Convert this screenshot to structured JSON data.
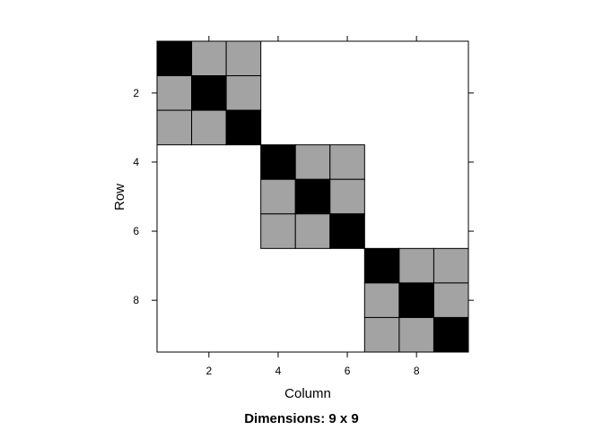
{
  "chart_data": {
    "type": "heatmap",
    "title": "",
    "xlabel": "Column",
    "ylabel": "Row",
    "sub": "Dimensions: 9 x 9",
    "nrow": 9,
    "ncol": 9,
    "x_ticks": [
      2,
      4,
      6,
      8
    ],
    "y_ticks": [
      2,
      4,
      6,
      8
    ],
    "y_reversed": true,
    "colors": {
      "diagonal": "#000000",
      "block": "#a3a3a3",
      "empty": "#ffffff",
      "border": "#000000"
    },
    "cells": [
      {
        "row": 1,
        "col": 1,
        "value": "diagonal"
      },
      {
        "row": 1,
        "col": 2,
        "value": "block"
      },
      {
        "row": 1,
        "col": 3,
        "value": "block"
      },
      {
        "row": 2,
        "col": 1,
        "value": "block"
      },
      {
        "row": 2,
        "col": 2,
        "value": "diagonal"
      },
      {
        "row": 2,
        "col": 3,
        "value": "block"
      },
      {
        "row": 3,
        "col": 1,
        "value": "block"
      },
      {
        "row": 3,
        "col": 2,
        "value": "block"
      },
      {
        "row": 3,
        "col": 3,
        "value": "diagonal"
      },
      {
        "row": 4,
        "col": 4,
        "value": "diagonal"
      },
      {
        "row": 4,
        "col": 5,
        "value": "block"
      },
      {
        "row": 4,
        "col": 6,
        "value": "block"
      },
      {
        "row": 5,
        "col": 4,
        "value": "block"
      },
      {
        "row": 5,
        "col": 5,
        "value": "diagonal"
      },
      {
        "row": 5,
        "col": 6,
        "value": "block"
      },
      {
        "row": 6,
        "col": 4,
        "value": "block"
      },
      {
        "row": 6,
        "col": 5,
        "value": "block"
      },
      {
        "row": 6,
        "col": 6,
        "value": "diagonal"
      },
      {
        "row": 7,
        "col": 7,
        "value": "diagonal"
      },
      {
        "row": 7,
        "col": 8,
        "value": "block"
      },
      {
        "row": 7,
        "col": 9,
        "value": "block"
      },
      {
        "row": 8,
        "col": 7,
        "value": "block"
      },
      {
        "row": 8,
        "col": 8,
        "value": "diagonal"
      },
      {
        "row": 8,
        "col": 9,
        "value": "block"
      },
      {
        "row": 9,
        "col": 7,
        "value": "block"
      },
      {
        "row": 9,
        "col": 8,
        "value": "block"
      },
      {
        "row": 9,
        "col": 9,
        "value": "diagonal"
      }
    ]
  }
}
